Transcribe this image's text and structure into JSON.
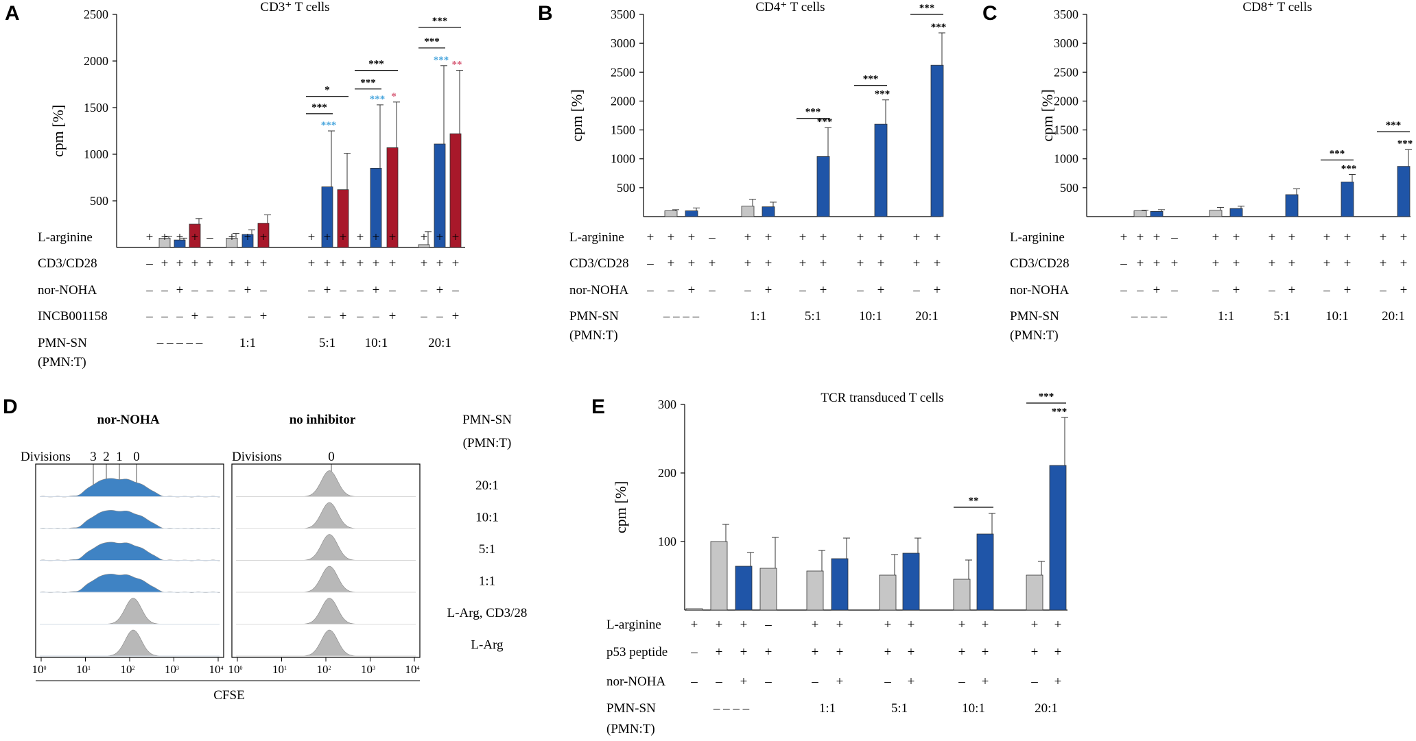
{
  "colors": {
    "gray": "#c6c6c6",
    "blue": "#1f55a8",
    "red": "#a8182a",
    "cyan": "#4aa6dd",
    "pink": "#d8607a",
    "flow_blue": "#3f83c4",
    "flow_gray": "#b8b8b8"
  },
  "chart_data": [
    {
      "panel": "A",
      "type": "bar",
      "title": "CD3⁺ T cells",
      "ylabel": "cpm [%]",
      "ylim": [
        0,
        2500
      ],
      "yticks": [
        500,
        1000,
        1500,
        2000,
        2500
      ],
      "row_labels": [
        "L-arginine",
        "CD3/CD28",
        "nor-NOHA",
        "INCB001158",
        "PMN-SN",
        "(PMN:T)"
      ],
      "groups": [
        {
          "bars": [
            {
              "value": 0,
              "err": 0,
              "color": "gray"
            },
            {
              "value": 100,
              "err": 20,
              "color": "gray"
            },
            {
              "value": 80,
              "err": 20,
              "color": "blue"
            },
            {
              "value": 250,
              "err": 60,
              "color": "red"
            },
            {
              "value": 0,
              "err": 0,
              "color": "gray"
            }
          ],
          "rows": [
            [
              "+",
              "+",
              "+",
              "+",
              "–"
            ],
            [
              "–",
              "+",
              "+",
              "+",
              "+"
            ],
            [
              "–",
              "–",
              "+",
              "–",
              "–"
            ],
            [
              "–",
              "–",
              "–",
              "+",
              "–"
            ]
          ],
          "cond": "–  –  –  –  –"
        },
        {
          "bars": [
            {
              "value": 100,
              "err": 50,
              "color": "gray"
            },
            {
              "value": 140,
              "err": 50,
              "color": "blue"
            },
            {
              "value": 260,
              "err": 90,
              "color": "red"
            }
          ],
          "rows": [
            [
              "+",
              "+",
              "+"
            ],
            [
              "+",
              "+",
              "+"
            ],
            [
              "–",
              "+",
              "–"
            ],
            [
              "–",
              "–",
              "+"
            ]
          ],
          "cond": "1:1"
        },
        {
          "bars": [
            {
              "value": 0,
              "err": 0,
              "color": "gray"
            },
            {
              "value": 650,
              "err": 600,
              "color": "blue",
              "star": "***",
              "starColor": "cyan"
            },
            {
              "value": 620,
              "err": 390,
              "color": "red"
            }
          ],
          "rows": [
            [
              "+",
              "+",
              "+"
            ],
            [
              "+",
              "+",
              "+"
            ],
            [
              "–",
              "+",
              "–"
            ],
            [
              "–",
              "–",
              "+"
            ]
          ],
          "cond": "5:1",
          "brackets": [
            {
              "a": 0,
              "b": 1,
              "label": "***",
              "y": 1435
            },
            {
              "a": 0,
              "b": 2,
              "label": "*",
              "y": 1620
            }
          ]
        },
        {
          "bars": [
            {
              "value": 0,
              "err": 0,
              "color": "gray"
            },
            {
              "value": 850,
              "err": 680,
              "color": "blue",
              "star": "***",
              "starColor": "cyan"
            },
            {
              "value": 1070,
              "err": 490,
              "color": "red",
              "star": "*",
              "starColor": "pink"
            }
          ],
          "rows": [
            [
              "+",
              "+",
              "+"
            ],
            [
              "+",
              "+",
              "+"
            ],
            [
              "–",
              "+",
              "–"
            ],
            [
              "–",
              "–",
              "+"
            ]
          ],
          "cond": "10:1",
          "brackets": [
            {
              "a": 0,
              "b": 1,
              "label": "***",
              "y": 1700
            },
            {
              "a": 0,
              "b": 2,
              "label": "***",
              "y": 1900
            }
          ]
        },
        {
          "bars": [
            {
              "value": 30,
              "err": 140,
              "color": "gray"
            },
            {
              "value": 1110,
              "err": 840,
              "color": "blue",
              "star": "***",
              "starColor": "cyan"
            },
            {
              "value": 1220,
              "err": 680,
              "color": "red",
              "star": "**",
              "starColor": "pink"
            }
          ],
          "rows": [
            [
              "+",
              "+",
              "+"
            ],
            [
              "+",
              "+",
              "+"
            ],
            [
              "–",
              "+",
              "–"
            ],
            [
              "–",
              "–",
              "+"
            ]
          ],
          "cond": "20:1",
          "brackets": [
            {
              "a": 0,
              "b": 1,
              "label": "***",
              "y": 2140
            },
            {
              "a": 0,
              "b": 2,
              "label": "***",
              "y": 2360
            }
          ]
        }
      ]
    },
    {
      "panel": "B",
      "type": "bar",
      "title": "CD4⁺ T cells",
      "ylabel": "cpm [%]",
      "ylim": [
        0,
        3500
      ],
      "yticks": [
        500,
        1000,
        1500,
        2000,
        2500,
        3000,
        3500
      ],
      "row_labels": [
        "L-arginine",
        "CD3/CD28",
        "nor-NOHA",
        "PMN-SN",
        "(PMN:T)"
      ],
      "groups": [
        {
          "bars": [
            {
              "value": 0,
              "err": 0,
              "color": "gray"
            },
            {
              "value": 100,
              "err": 20,
              "color": "gray"
            },
            {
              "value": 100,
              "err": 50,
              "color": "blue"
            },
            {
              "value": 0,
              "err": 0,
              "color": "gray"
            }
          ],
          "rows": [
            [
              "+",
              "+",
              "+",
              "–"
            ],
            [
              "–",
              "+",
              "+",
              "+"
            ],
            [
              "–",
              "–",
              "+",
              "–"
            ]
          ],
          "cond": "–  –  –  –"
        },
        {
          "bars": [
            {
              "value": 180,
              "err": 120,
              "color": "gray"
            },
            {
              "value": 170,
              "err": 80,
              "color": "blue"
            }
          ],
          "rows": [
            [
              "+",
              "+"
            ],
            [
              "+",
              "+"
            ],
            [
              "–",
              "+"
            ]
          ],
          "cond": "1:1"
        },
        {
          "bars": [
            {
              "value": 0,
              "err": 0,
              "color": "gray"
            },
            {
              "value": 1040,
              "err": 500,
              "color": "blue",
              "star": "***",
              "starColor": "black"
            }
          ],
          "rows": [
            [
              "+",
              "+"
            ],
            [
              "+",
              "+"
            ],
            [
              "–",
              "+"
            ]
          ],
          "cond": "5:1",
          "brackets": [
            {
              "a": 0,
              "b": 1,
              "label": "***",
              "y": 1700
            }
          ]
        },
        {
          "bars": [
            {
              "value": 0,
              "err": 0,
              "color": "gray"
            },
            {
              "value": 1600,
              "err": 420,
              "color": "blue",
              "star": "***",
              "starColor": "black"
            }
          ],
          "rows": [
            [
              "+",
              "+"
            ],
            [
              "+",
              "+"
            ],
            [
              "–",
              "+"
            ]
          ],
          "cond": "10:1",
          "brackets": [
            {
              "a": 0,
              "b": 1,
              "label": "***",
              "y": 2270
            }
          ]
        },
        {
          "bars": [
            {
              "value": 0,
              "err": 0,
              "color": "gray"
            },
            {
              "value": 2620,
              "err": 560,
              "color": "blue",
              "star": "***",
              "starColor": "black"
            }
          ],
          "rows": [
            [
              "+",
              "+"
            ],
            [
              "+",
              "+"
            ],
            [
              "–",
              "+"
            ]
          ],
          "cond": "20:1",
          "brackets": [
            {
              "a": 0,
              "b": 1,
              "label": "***",
              "y": 3500
            }
          ]
        }
      ]
    },
    {
      "panel": "C",
      "type": "bar",
      "title": "CD8⁺ T cells",
      "ylabel": "cpm [%]",
      "ylim": [
        0,
        3500
      ],
      "yticks": [
        500,
        1000,
        1500,
        2000,
        2500,
        3000,
        3500
      ],
      "row_labels": [
        "L-arginine",
        "CD3/CD28",
        "nor-NOHA",
        "PMN-SN",
        "(PMN:T)"
      ],
      "groups": [
        {
          "bars": [
            {
              "value": 0,
              "err": 0,
              "color": "gray"
            },
            {
              "value": 100,
              "err": 10,
              "color": "gray"
            },
            {
              "value": 90,
              "err": 30,
              "color": "blue"
            },
            {
              "value": 0,
              "err": 0,
              "color": "gray"
            }
          ],
          "rows": [
            [
              "+",
              "+",
              "+",
              "–"
            ],
            [
              "–",
              "+",
              "+",
              "+"
            ],
            [
              "–",
              "–",
              "+",
              "–"
            ]
          ],
          "cond": "–  –  –  –"
        },
        {
          "bars": [
            {
              "value": 110,
              "err": 50,
              "color": "gray"
            },
            {
              "value": 140,
              "err": 40,
              "color": "blue"
            }
          ],
          "rows": [
            [
              "+",
              "+"
            ],
            [
              "+",
              "+"
            ],
            [
              "–",
              "+"
            ]
          ],
          "cond": "1:1"
        },
        {
          "bars": [
            {
              "value": 0,
              "err": 0,
              "color": "gray"
            },
            {
              "value": 380,
              "err": 100,
              "color": "blue"
            }
          ],
          "rows": [
            [
              "+",
              "+"
            ],
            [
              "+",
              "+"
            ],
            [
              "–",
              "+"
            ]
          ],
          "cond": "5:1"
        },
        {
          "bars": [
            {
              "value": 0,
              "err": 0,
              "color": "gray"
            },
            {
              "value": 600,
              "err": 130,
              "color": "blue",
              "star": "***",
              "starColor": "black"
            }
          ],
          "rows": [
            [
              "+",
              "+"
            ],
            [
              "+",
              "+"
            ],
            [
              "–",
              "+"
            ]
          ],
          "cond": "10:1",
          "brackets": [
            {
              "a": 0,
              "b": 1,
              "label": "***",
              "y": 980
            }
          ]
        },
        {
          "bars": [
            {
              "value": 0,
              "err": 0,
              "color": "gray"
            },
            {
              "value": 870,
              "err": 290,
              "color": "blue",
              "star": "***",
              "starColor": "black"
            }
          ],
          "rows": [
            [
              "+",
              "+"
            ],
            [
              "+",
              "+"
            ],
            [
              "–",
              "+"
            ]
          ],
          "cond": "20:1",
          "brackets": [
            {
              "a": 0,
              "b": 1,
              "label": "***",
              "y": 1470
            }
          ]
        }
      ]
    },
    {
      "panel": "E",
      "type": "bar",
      "title": "TCR transduced T cells",
      "ylabel": "cpm [%]",
      "ylim": [
        0,
        300
      ],
      "yticks": [
        100,
        200,
        300
      ],
      "row_labels": [
        "L-arginine",
        "p53 peptide",
        "nor-NOHA",
        "PMN-SN",
        "(PMN:T)"
      ],
      "groups": [
        {
          "bars": [
            {
              "value": 2,
              "err": 0,
              "color": "gray"
            },
            {
              "value": 100,
              "err": 25,
              "color": "gray"
            },
            {
              "value": 64,
              "err": 20,
              "color": "blue"
            },
            {
              "value": 61,
              "err": 45,
              "color": "gray"
            }
          ],
          "rows": [
            [
              "+",
              "+",
              "+",
              "–"
            ],
            [
              "–",
              "+",
              "+",
              "+"
            ],
            [
              "–",
              "–",
              "+",
              "–"
            ]
          ],
          "cond": "–  –  –  –"
        },
        {
          "bars": [
            {
              "value": 57,
              "err": 30,
              "color": "gray"
            },
            {
              "value": 75,
              "err": 30,
              "color": "blue"
            }
          ],
          "rows": [
            [
              "+",
              "+"
            ],
            [
              "+",
              "+"
            ],
            [
              "–",
              "+"
            ]
          ],
          "cond": "1:1"
        },
        {
          "bars": [
            {
              "value": 51,
              "err": 30,
              "color": "gray"
            },
            {
              "value": 83,
              "err": 22,
              "color": "blue"
            }
          ],
          "rows": [
            [
              "+",
              "+"
            ],
            [
              "+",
              "+"
            ],
            [
              "–",
              "+"
            ]
          ],
          "cond": "5:1"
        },
        {
          "bars": [
            {
              "value": 45,
              "err": 28,
              "color": "gray"
            },
            {
              "value": 111,
              "err": 30,
              "color": "blue"
            }
          ],
          "rows": [
            [
              "+",
              "+"
            ],
            [
              "+",
              "+"
            ],
            [
              "–",
              "+"
            ]
          ],
          "cond": "10:1",
          "brackets": [
            {
              "a": 0,
              "b": 1,
              "label": "**",
              "y": 150
            }
          ]
        },
        {
          "bars": [
            {
              "value": 51,
              "err": 20,
              "color": "gray"
            },
            {
              "value": 211,
              "err": 70,
              "color": "blue",
              "star": "***",
              "starColor": "black"
            }
          ],
          "rows": [
            [
              "+",
              "+"
            ],
            [
              "+",
              "+"
            ],
            [
              "–",
              "+"
            ]
          ],
          "cond": "20:1",
          "brackets": [
            {
              "a": 0,
              "b": 1,
              "label": "***",
              "y": 302
            }
          ]
        }
      ]
    },
    {
      "panel": "D",
      "type": "histogram",
      "left_title": "nor-NOHA",
      "right_title": "no inhibitor",
      "left_divisions_label": "Divisions",
      "right_divisions_label": "Divisions",
      "division_markers": [
        "3",
        "2",
        "1",
        "0"
      ],
      "right_marker": "0",
      "condition_header": [
        "PMN-SN",
        "(PMN:T)"
      ],
      "conditions": [
        "20:1",
        "10:1",
        "5:1",
        "1:1",
        "L-Arg, CD3/28",
        "L-Arg"
      ],
      "left_colors": [
        "blue",
        "blue",
        "blue",
        "blue",
        "gray",
        "gray"
      ],
      "x_axis_label": "CFSE",
      "x_ticks": [
        "10",
        "10",
        "10",
        "10",
        "10"
      ],
      "x_tick_exponents": [
        "0",
        "1",
        "2",
        "3",
        "4"
      ]
    }
  ]
}
